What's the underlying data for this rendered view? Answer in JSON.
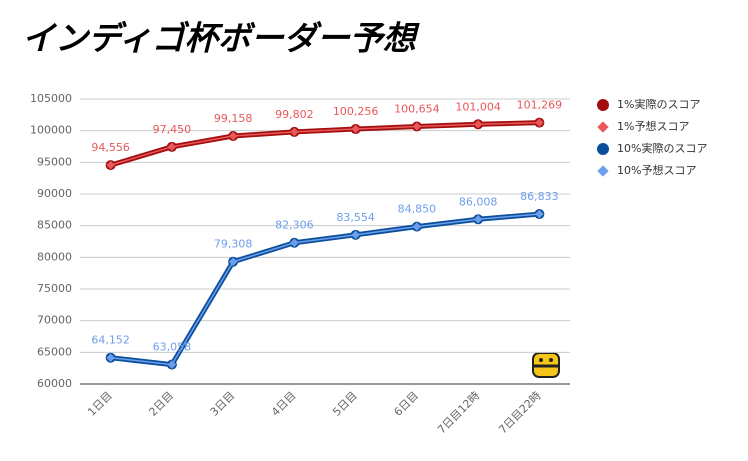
{
  "chart_data": {
    "type": "line",
    "title": "インディゴ杯ボーダー予想",
    "categories": [
      "1日目",
      "2日目",
      "3日目",
      "4日目",
      "5日目",
      "6日目",
      "7日目12時",
      "7日目22時"
    ],
    "series": [
      {
        "name": "1%実際のスコア",
        "color": "#a30e0e",
        "values": [
          94556,
          97450,
          99158,
          99802,
          100256,
          100654,
          101004,
          101269
        ]
      },
      {
        "name": "1%予想スコア",
        "color": "#e8585a",
        "values": [
          94556,
          97450,
          99158,
          99802,
          100256,
          100654,
          101004,
          101269
        ],
        "value_labels": [
          "94,556",
          "97,450",
          "99,158",
          "99,802",
          "100,256",
          "100,654",
          "101,004",
          "101,269"
        ]
      },
      {
        "name": "10%実際のスコア",
        "color": "#0b4f9c",
        "values": [
          64152,
          63058,
          79308,
          82306,
          83554,
          84850,
          86008,
          86833
        ]
      },
      {
        "name": "10%予想スコア",
        "color": "#6d9eeb",
        "values": [
          64152,
          63058,
          79308,
          82306,
          83554,
          84850,
          86008,
          86833
        ],
        "value_labels": [
          "64,152",
          "63,058",
          "79,308",
          "82,306",
          "83,554",
          "84,850",
          "86,008",
          "86,833"
        ]
      }
    ],
    "ylim": [
      60000,
      105000
    ],
    "yticks": [
      60000,
      65000,
      70000,
      75000,
      80000,
      85000,
      90000,
      95000,
      100000,
      105000
    ],
    "grid": true,
    "legend": "right"
  }
}
